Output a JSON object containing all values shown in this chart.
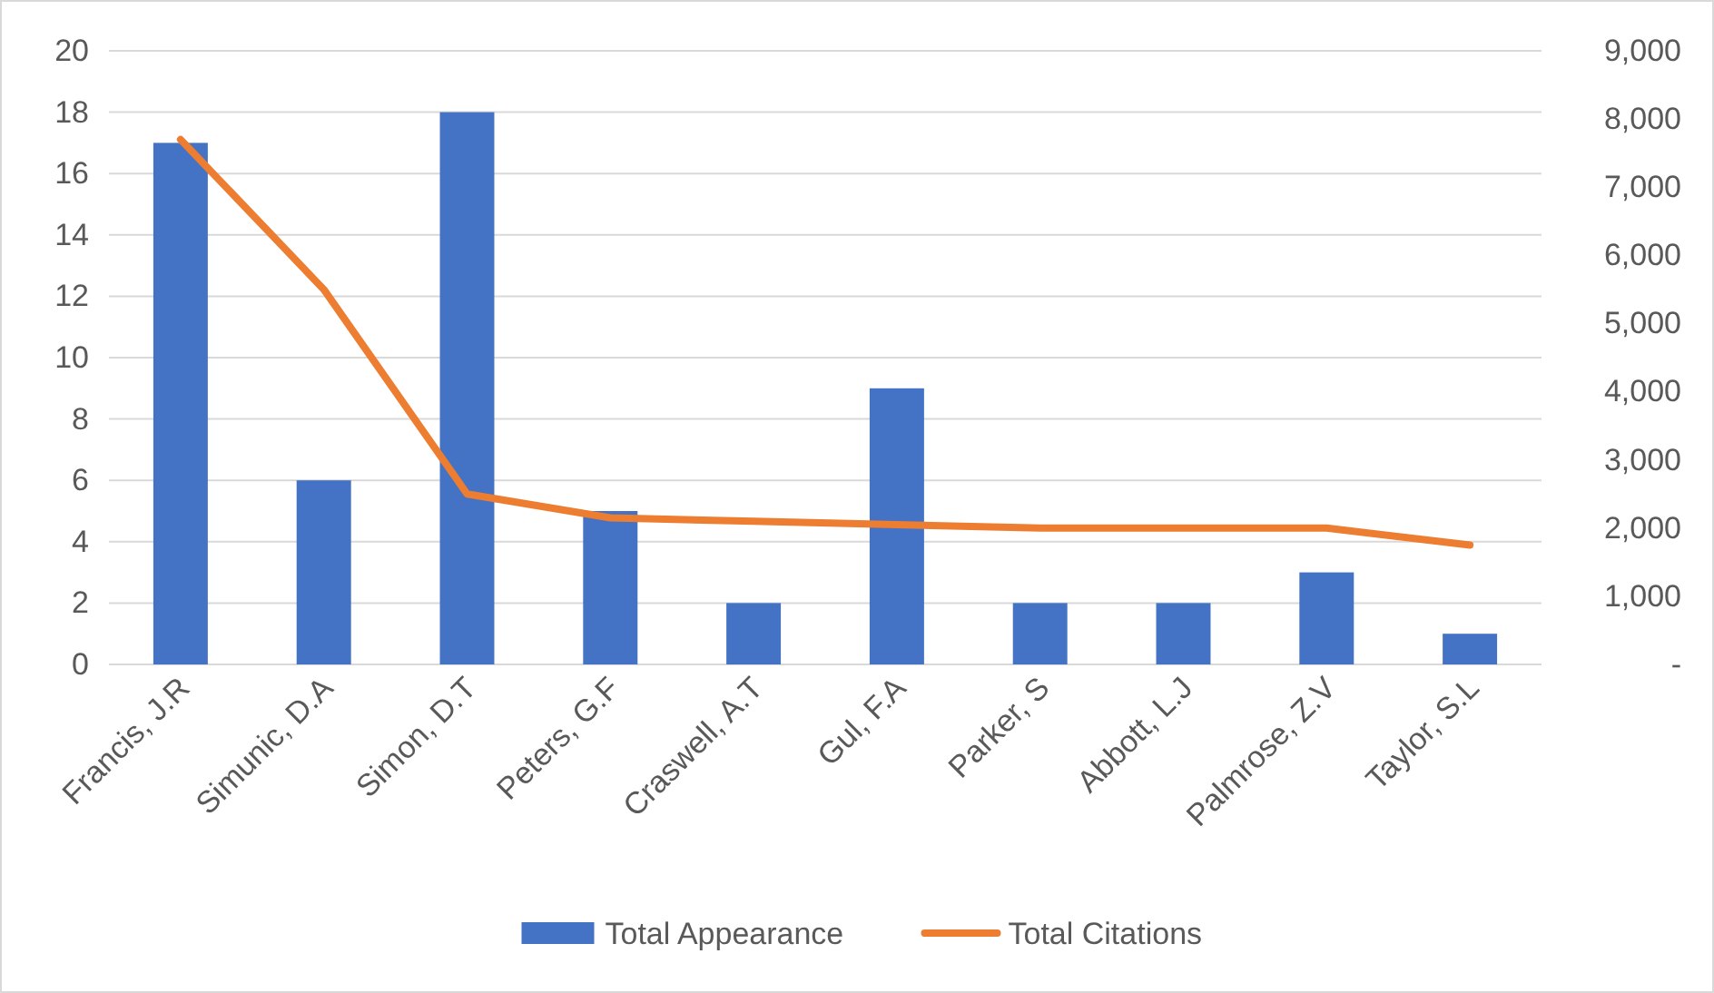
{
  "chart_data": {
    "type": "bar",
    "categories": [
      "Francis, J.R",
      "Simunic, D.A",
      "Simon, D.T",
      "Peters, G.F",
      "Craswell, A.T",
      "Gul, F.A",
      "Parker, S",
      "Abbott, L.J",
      "Palmrose, Z.V",
      "Taylor, S.L"
    ],
    "series": [
      {
        "name": "Total Appearance",
        "color": "#4472c4",
        "values": [
          17,
          6,
          18,
          5,
          2,
          9,
          2,
          2,
          3,
          1
        ]
      },
      {
        "name": "Total Citations",
        "type": "line",
        "axis": "y2",
        "color": "#ed7d31",
        "values": [
          7700,
          5500,
          2500,
          2150,
          2100,
          2050,
          2000,
          2000,
          2000,
          1750
        ]
      }
    ],
    "ylim": [
      0,
      20
    ],
    "yticks": [
      0,
      2,
      4,
      6,
      8,
      10,
      12,
      14,
      16,
      18,
      20
    ],
    "y2lim": [
      0,
      9000
    ],
    "y2ticks": [
      {
        "value": 0,
        "label": "-"
      },
      {
        "value": 1000,
        "label": "1,000"
      },
      {
        "value": 2000,
        "label": "2,000"
      },
      {
        "value": 3000,
        "label": "3,000"
      },
      {
        "value": 4000,
        "label": "4,000"
      },
      {
        "value": 5000,
        "label": "5,000"
      },
      {
        "value": 6000,
        "label": "6,000"
      },
      {
        "value": 7000,
        "label": "7,000"
      },
      {
        "value": 8000,
        "label": "8,000"
      },
      {
        "value": 9000,
        "label": "9,000"
      }
    ],
    "grid": "y",
    "legend": "bottom",
    "line_style": "solid",
    "marker": "none"
  }
}
